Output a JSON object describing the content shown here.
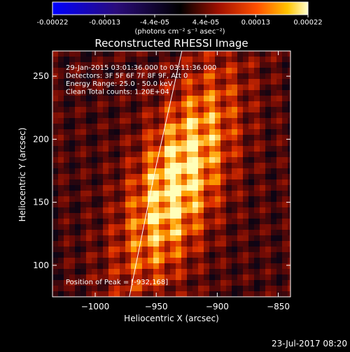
{
  "chart_data": {
    "type": "heatmap",
    "title": "Reconstructed RHESSI Image",
    "xlabel": "Heliocentric X (arcsec)",
    "ylabel": "Heliocentric Y (arcsec)",
    "xlim": [
      -1035,
      -840
    ],
    "ylim": [
      75,
      270
    ],
    "x_ticks": [
      -1000,
      -950,
      -900,
      -850
    ],
    "x_tick_labels": [
      "−1000",
      "−950",
      "−900",
      "−850"
    ],
    "y_ticks": [
      100,
      150,
      200,
      250
    ],
    "y_tick_labels": [
      "100",
      "150",
      "200",
      "250"
    ],
    "colorbar": {
      "min": -0.00022,
      "max": 0.00022,
      "ticks": [
        -0.00022,
        -0.00013,
        -4.4e-05,
        4.4e-05,
        0.00013,
        0.00022
      ],
      "tick_labels": [
        "-0.00022",
        "-0.00013",
        "-4.4e-05",
        "4.4e-05",
        "0.00013",
        "0.00022"
      ],
      "units": "(photons cm⁻² s⁻¹ asec⁻²)"
    },
    "annotations": [
      "29-Jan-2015 03:01:36.000 to 03:11:36.000",
      "Detectors: 3F 5F 6F 7F 8F 9F, Att 0",
      "Energy Range: 25.0 - 50.0 keV",
      "Clean    Total counts: 1.20E+04"
    ],
    "peak_label": "Position of Peak = [-932,168]",
    "peak": [
      -932,
      168
    ],
    "limb_line": [
      [
        -972,
        75
      ],
      [
        -951,
        175
      ],
      [
        -929,
        270
      ]
    ],
    "timestamp": "23-Jul-2017 08:20"
  }
}
